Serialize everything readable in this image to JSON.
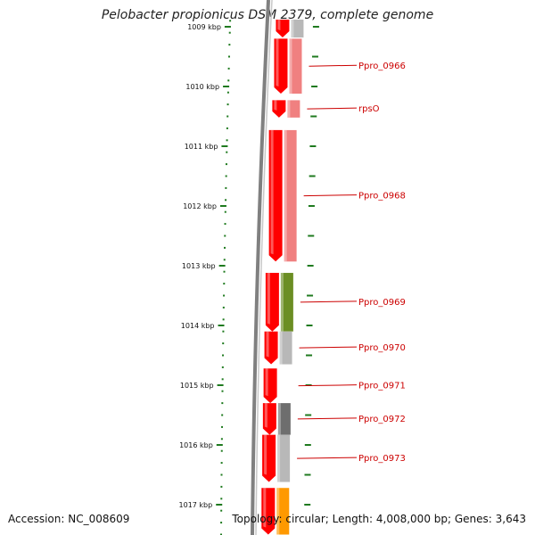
{
  "header": {
    "title": "Pelobacter propionicus DSM 2379, complete genome"
  },
  "footer": {
    "accession": "Accession: NC_008609",
    "summary": "Topology: circular; Length: 4,008,000 bp; Genes: 3,643"
  },
  "colors": {
    "gene_red": "#ff0000",
    "ring_pink": "#f08080",
    "ring_green": "#6b8e23",
    "ring_grey": "#b8b8b8",
    "ring_dark_grey": "#6e6e6e",
    "ring_orange": "#ff9900",
    "tick_green": "#1f7a1f",
    "label_red": "#cc0000",
    "backbone_grey": "#808080"
  },
  "chart_data": {
    "type": "genome-map",
    "title": "Pelobacter propionicus DSM 2379, complete genome",
    "axis_unit": "kbp",
    "ticks_kbp": [
      1009,
      1010,
      1011,
      1012,
      1013,
      1014,
      1015,
      1016,
      1017
    ],
    "tick_labels": [
      "1009 kbp",
      "1010 kbp",
      "1011 kbp",
      "1012 kbp",
      "1013 kbp",
      "1014 kbp",
      "1015 kbp",
      "1016 kbp",
      "1017 kbp"
    ],
    "genes": [
      {
        "label": "",
        "start_kbp": 1008.88,
        "end_kbp": 1009.18,
        "cog_color": "grey"
      },
      {
        "label": "Ppro_0966",
        "start_kbp": 1009.2,
        "end_kbp": 1010.12,
        "cog_color": "pink"
      },
      {
        "label": "rpsO",
        "start_kbp": 1010.23,
        "end_kbp": 1010.52,
        "cog_color": "pink"
      },
      {
        "label": "Ppro_0968",
        "start_kbp": 1010.73,
        "end_kbp": 1012.93,
        "cog_color": "pink"
      },
      {
        "label": "Ppro_0969",
        "start_kbp": 1013.12,
        "end_kbp": 1014.1,
        "cog_color": "green"
      },
      {
        "label": "Ppro_0970",
        "start_kbp": 1014.1,
        "end_kbp": 1014.65,
        "cog_color": "grey"
      },
      {
        "label": "Ppro_0971",
        "start_kbp": 1014.72,
        "end_kbp": 1015.3,
        "cog_color": "none"
      },
      {
        "label": "Ppro_0972",
        "start_kbp": 1015.3,
        "end_kbp": 1015.83,
        "cog_color": "dark-grey"
      },
      {
        "label": "Ppro_0973",
        "start_kbp": 1015.83,
        "end_kbp": 1016.62,
        "cog_color": "grey"
      },
      {
        "label": "",
        "start_kbp": 1016.72,
        "end_kbp": 1017.5,
        "cog_color": "orange"
      }
    ]
  }
}
